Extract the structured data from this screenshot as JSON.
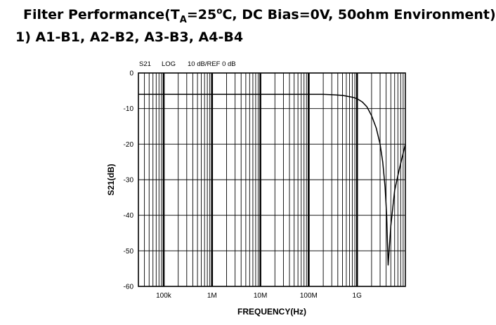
{
  "heading": {
    "title_pre": "Filter Performance(T",
    "title_sub": "A",
    "title_mid": "=25",
    "title_sup": "o",
    "title_post": "C, DC Bias=0V, 50ohm Environment)",
    "subtitle": "1) A1-B1, A2-B2, A3-B3, A4-B4"
  },
  "chart_data": {
    "type": "line",
    "header": {
      "param": "S21",
      "format": "LOG",
      "scale": "10 dB/REF 0 dB"
    },
    "xlabel": "FREQUENCY(Hz)",
    "ylabel": "S21(dB)",
    "xscale": "log",
    "xlim": [
      30000,
      10000000000
    ],
    "ylim": [
      -60,
      0
    ],
    "grid": true,
    "legend": "none",
    "x_tick_labels": [
      {
        "value": 100000,
        "label": "100k"
      },
      {
        "value": 1000000,
        "label": "1M"
      },
      {
        "value": 10000000,
        "label": "10M"
      },
      {
        "value": 100000000,
        "label": "100M"
      },
      {
        "value": 1000000000,
        "label": "1G"
      }
    ],
    "y_ticks": [
      0,
      -10,
      -20,
      -30,
      -40,
      -50,
      -60
    ],
    "series": [
      {
        "x": [
          30000,
          100000,
          1000000,
          10000000,
          100000000,
          200000000,
          300000000,
          500000000,
          800000000,
          1000000000,
          1300000000,
          1600000000,
          2000000000,
          2500000000,
          3000000000,
          3400000000,
          3800000000,
          4100000000,
          4400000000,
          5000000000,
          6000000000,
          7500000000,
          10000000000
        ],
        "y": [
          -6,
          -6,
          -6,
          -6,
          -6,
          -6,
          -6.1,
          -6.3,
          -6.8,
          -7.2,
          -8.2,
          -9.5,
          -12,
          -15.5,
          -20,
          -25,
          -32,
          -40,
          -54,
          -43,
          -33,
          -27,
          -20
        ]
      }
    ]
  }
}
